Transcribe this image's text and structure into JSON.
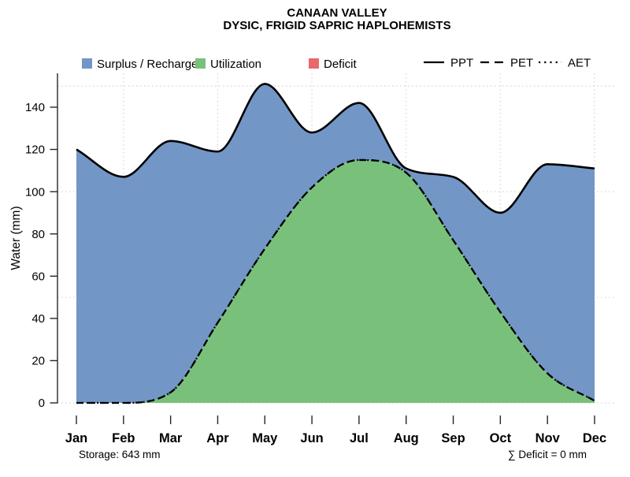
{
  "title": {
    "line1": "CANAAN VALLEY",
    "line2": "DYSIC, FRIGID SAPRIC HAPLOHEMISTS"
  },
  "legend": {
    "areas": [
      {
        "key": "surplus",
        "label": "Surplus / Recharge",
        "color": "#7296C6"
      },
      {
        "key": "utilization",
        "label": "Utilization",
        "color": "#79C17B"
      },
      {
        "key": "deficit",
        "label": "Deficit",
        "color": "#E9696B"
      }
    ],
    "lines": [
      {
        "key": "ppt",
        "label": "PPT",
        "style": "solid"
      },
      {
        "key": "pet",
        "label": "PET",
        "style": "dashed"
      },
      {
        "key": "aet",
        "label": "AET",
        "style": "dotted"
      }
    ]
  },
  "axes": {
    "y_label": "Water (mm)",
    "y_ticks": [
      0,
      20,
      40,
      60,
      80,
      100,
      120,
      140
    ]
  },
  "chart_data": {
    "type": "area",
    "title": "CANAAN VALLEY",
    "subtitle": "DYSIC, FRIGID SAPRIC HAPLOHEMISTS",
    "xlabel": "",
    "ylabel": "Water (mm)",
    "ylim": [
      0,
      155
    ],
    "x": [
      "Jan",
      "Feb",
      "Mar",
      "Apr",
      "May",
      "Jun",
      "Jul",
      "Aug",
      "Sep",
      "Oct",
      "Nov",
      "Dec"
    ],
    "series": [
      {
        "name": "PPT",
        "line": "solid",
        "values": [
          120,
          107,
          124,
          119,
          151,
          128,
          142,
          111,
          107,
          90,
          113,
          111
        ]
      },
      {
        "name": "PET",
        "line": "dashed",
        "values": [
          0,
          0,
          5,
          38,
          73,
          102,
          115,
          109,
          77,
          43,
          14,
          1
        ]
      },
      {
        "name": "AET",
        "line": "dotted",
        "values": [
          0,
          0,
          5,
          38,
          73,
          102,
          115,
          109,
          77,
          43,
          14,
          1
        ]
      }
    ],
    "areas": [
      {
        "name": "Surplus / Recharge",
        "between": [
          "PPT",
          "AET"
        ],
        "color": "#7296C6"
      },
      {
        "name": "Utilization",
        "between": [
          "AET",
          0
        ],
        "color": "#79C17B"
      },
      {
        "name": "Deficit",
        "between": [],
        "color": "#E9696B"
      }
    ],
    "grid": {
      "style": "dotted",
      "h_values": [
        0,
        50,
        100,
        150
      ],
      "v_months": [
        "Feb",
        "Apr",
        "Jun",
        "Aug",
        "Oct",
        "Dec"
      ]
    },
    "legend_position": "top",
    "annotations": {
      "storage_mm": 643,
      "deficit_sum_mm": 0
    }
  },
  "footer": {
    "storage": "Storage: 643 mm",
    "deficit_sum": "∑ Deficit = 0 mm"
  }
}
